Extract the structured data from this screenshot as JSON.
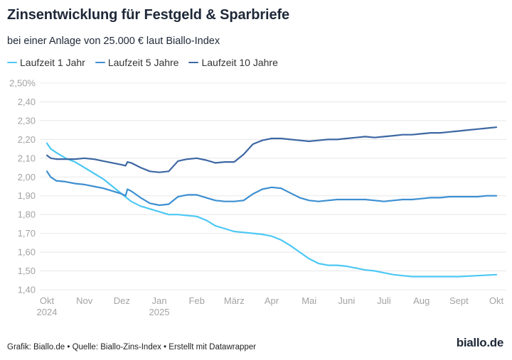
{
  "header": {
    "title": "Zinsentwicklung für Festgeld & Sparbriefe",
    "subtitle": "bei einer Anlage von 25.000 € laut Biallo-Index"
  },
  "footer": {
    "credit": "Grafik: Biallo.de • Quelle: Biallo-Zins-Index • Erstellt mit Datawrapper",
    "logo": "biallo.de"
  },
  "chart_data": {
    "type": "line",
    "title": "Zinsentwicklung für Festgeld & Sparbriefe",
    "subtitle": "bei einer Anlage von 25.000 € laut Biallo-Index",
    "xlabel": "",
    "ylabel": "",
    "ylim": [
      1.4,
      2.5
    ],
    "yticks": [
      1.4,
      1.5,
      1.6,
      1.7,
      1.8,
      1.9,
      2.0,
      2.1,
      2.2,
      2.3,
      2.4,
      2.5
    ],
    "ytick_labels": [
      "1,40",
      "1,50",
      "1,60",
      "1,70",
      "1,80",
      "1,90",
      "2,00",
      "2,10",
      "2,20",
      "2,30",
      "2,40",
      "2,50%"
    ],
    "xlim": [
      0,
      12
    ],
    "x_unit": "months since Okt 2024",
    "xticks": [
      0,
      1,
      2,
      3,
      4,
      5,
      6,
      7,
      8,
      9,
      10,
      11,
      12
    ],
    "xtick_labels": [
      [
        "Okt",
        "2024"
      ],
      [
        "Nov"
      ],
      [
        "Dez"
      ],
      [
        "Jan",
        "2025"
      ],
      [
        "Feb"
      ],
      [
        "März"
      ],
      [
        "Apr"
      ],
      [
        "Mai"
      ],
      [
        "Juni"
      ],
      [
        "Juli"
      ],
      [
        "Aug"
      ],
      [
        "Sept"
      ],
      [
        "Okt"
      ]
    ],
    "grid": true,
    "legend_position": "top-left",
    "series": [
      {
        "name": "Laufzeit 1 Jahr",
        "color": "#4dc8f4",
        "x": [
          0,
          0.1,
          0.25,
          0.5,
          0.75,
          1.0,
          1.25,
          1.5,
          1.75,
          2.0,
          2.25,
          2.5,
          2.75,
          3.0,
          3.25,
          3.5,
          3.75,
          4.0,
          4.25,
          4.5,
          4.75,
          5.0,
          5.25,
          5.5,
          5.75,
          6.0,
          6.25,
          6.5,
          6.75,
          7.0,
          7.25,
          7.5,
          7.75,
          8.0,
          8.25,
          8.5,
          8.75,
          9.0,
          9.25,
          9.5,
          9.75,
          10.0,
          10.5,
          11.0,
          11.5,
          12.0
        ],
        "values": [
          2.18,
          2.15,
          2.13,
          2.1,
          2.08,
          2.05,
          2.02,
          1.99,
          1.95,
          1.91,
          1.87,
          1.845,
          1.83,
          1.815,
          1.8,
          1.8,
          1.795,
          1.79,
          1.77,
          1.74,
          1.725,
          1.71,
          1.705,
          1.7,
          1.695,
          1.685,
          1.665,
          1.635,
          1.6,
          1.565,
          1.54,
          1.53,
          1.53,
          1.525,
          1.515,
          1.505,
          1.5,
          1.49,
          1.48,
          1.475,
          1.47,
          1.47,
          1.47,
          1.47,
          1.475,
          1.48
        ]
      },
      {
        "name": "Laufzeit 5 Jahre",
        "color": "#3d8fd1",
        "x": [
          0,
          0.1,
          0.25,
          0.5,
          0.75,
          1.0,
          1.25,
          1.5,
          1.75,
          2.0,
          2.1,
          2.15,
          2.25,
          2.5,
          2.75,
          3.0,
          3.25,
          3.5,
          3.75,
          4.0,
          4.25,
          4.5,
          4.75,
          5.0,
          5.25,
          5.5,
          5.75,
          6.0,
          6.25,
          6.5,
          6.75,
          7.0,
          7.25,
          7.5,
          7.75,
          8.0,
          8.25,
          8.5,
          8.75,
          9.0,
          9.25,
          9.5,
          9.75,
          10.0,
          10.25,
          10.5,
          10.75,
          11.0,
          11.25,
          11.5,
          11.75,
          12.0
        ],
        "values": [
          2.03,
          2.0,
          1.98,
          1.975,
          1.965,
          1.96,
          1.95,
          1.94,
          1.925,
          1.91,
          1.9,
          1.935,
          1.925,
          1.89,
          1.86,
          1.85,
          1.855,
          1.895,
          1.905,
          1.905,
          1.89,
          1.875,
          1.87,
          1.87,
          1.875,
          1.91,
          1.935,
          1.945,
          1.94,
          1.915,
          1.89,
          1.875,
          1.87,
          1.875,
          1.88,
          1.88,
          1.88,
          1.88,
          1.875,
          1.87,
          1.875,
          1.88,
          1.88,
          1.885,
          1.89,
          1.89,
          1.895,
          1.895,
          1.895,
          1.895,
          1.9,
          1.9
        ]
      },
      {
        "name": "Laufzeit 10 Jahre",
        "color": "#3d67a3",
        "x": [
          0,
          0.1,
          0.25,
          0.5,
          0.75,
          1.0,
          1.25,
          1.5,
          1.75,
          2.0,
          2.1,
          2.15,
          2.25,
          2.5,
          2.75,
          3.0,
          3.25,
          3.5,
          3.75,
          4.0,
          4.25,
          4.5,
          4.75,
          5.0,
          5.25,
          5.5,
          5.75,
          6.0,
          6.25,
          6.5,
          6.75,
          7.0,
          7.25,
          7.5,
          7.75,
          8.0,
          8.25,
          8.5,
          8.75,
          9.0,
          9.25,
          9.5,
          9.75,
          10.0,
          10.25,
          10.5,
          10.75,
          11.0,
          11.25,
          11.5,
          11.75,
          12.0
        ],
        "values": [
          2.115,
          2.1,
          2.095,
          2.095,
          2.095,
          2.1,
          2.095,
          2.085,
          2.075,
          2.065,
          2.06,
          2.08,
          2.075,
          2.05,
          2.03,
          2.025,
          2.03,
          2.085,
          2.095,
          2.1,
          2.09,
          2.075,
          2.08,
          2.08,
          2.12,
          2.175,
          2.195,
          2.205,
          2.205,
          2.2,
          2.195,
          2.19,
          2.195,
          2.2,
          2.2,
          2.205,
          2.21,
          2.215,
          2.21,
          2.215,
          2.22,
          2.225,
          2.225,
          2.23,
          2.235,
          2.235,
          2.24,
          2.245,
          2.25,
          2.255,
          2.26,
          2.265
        ]
      }
    ]
  }
}
